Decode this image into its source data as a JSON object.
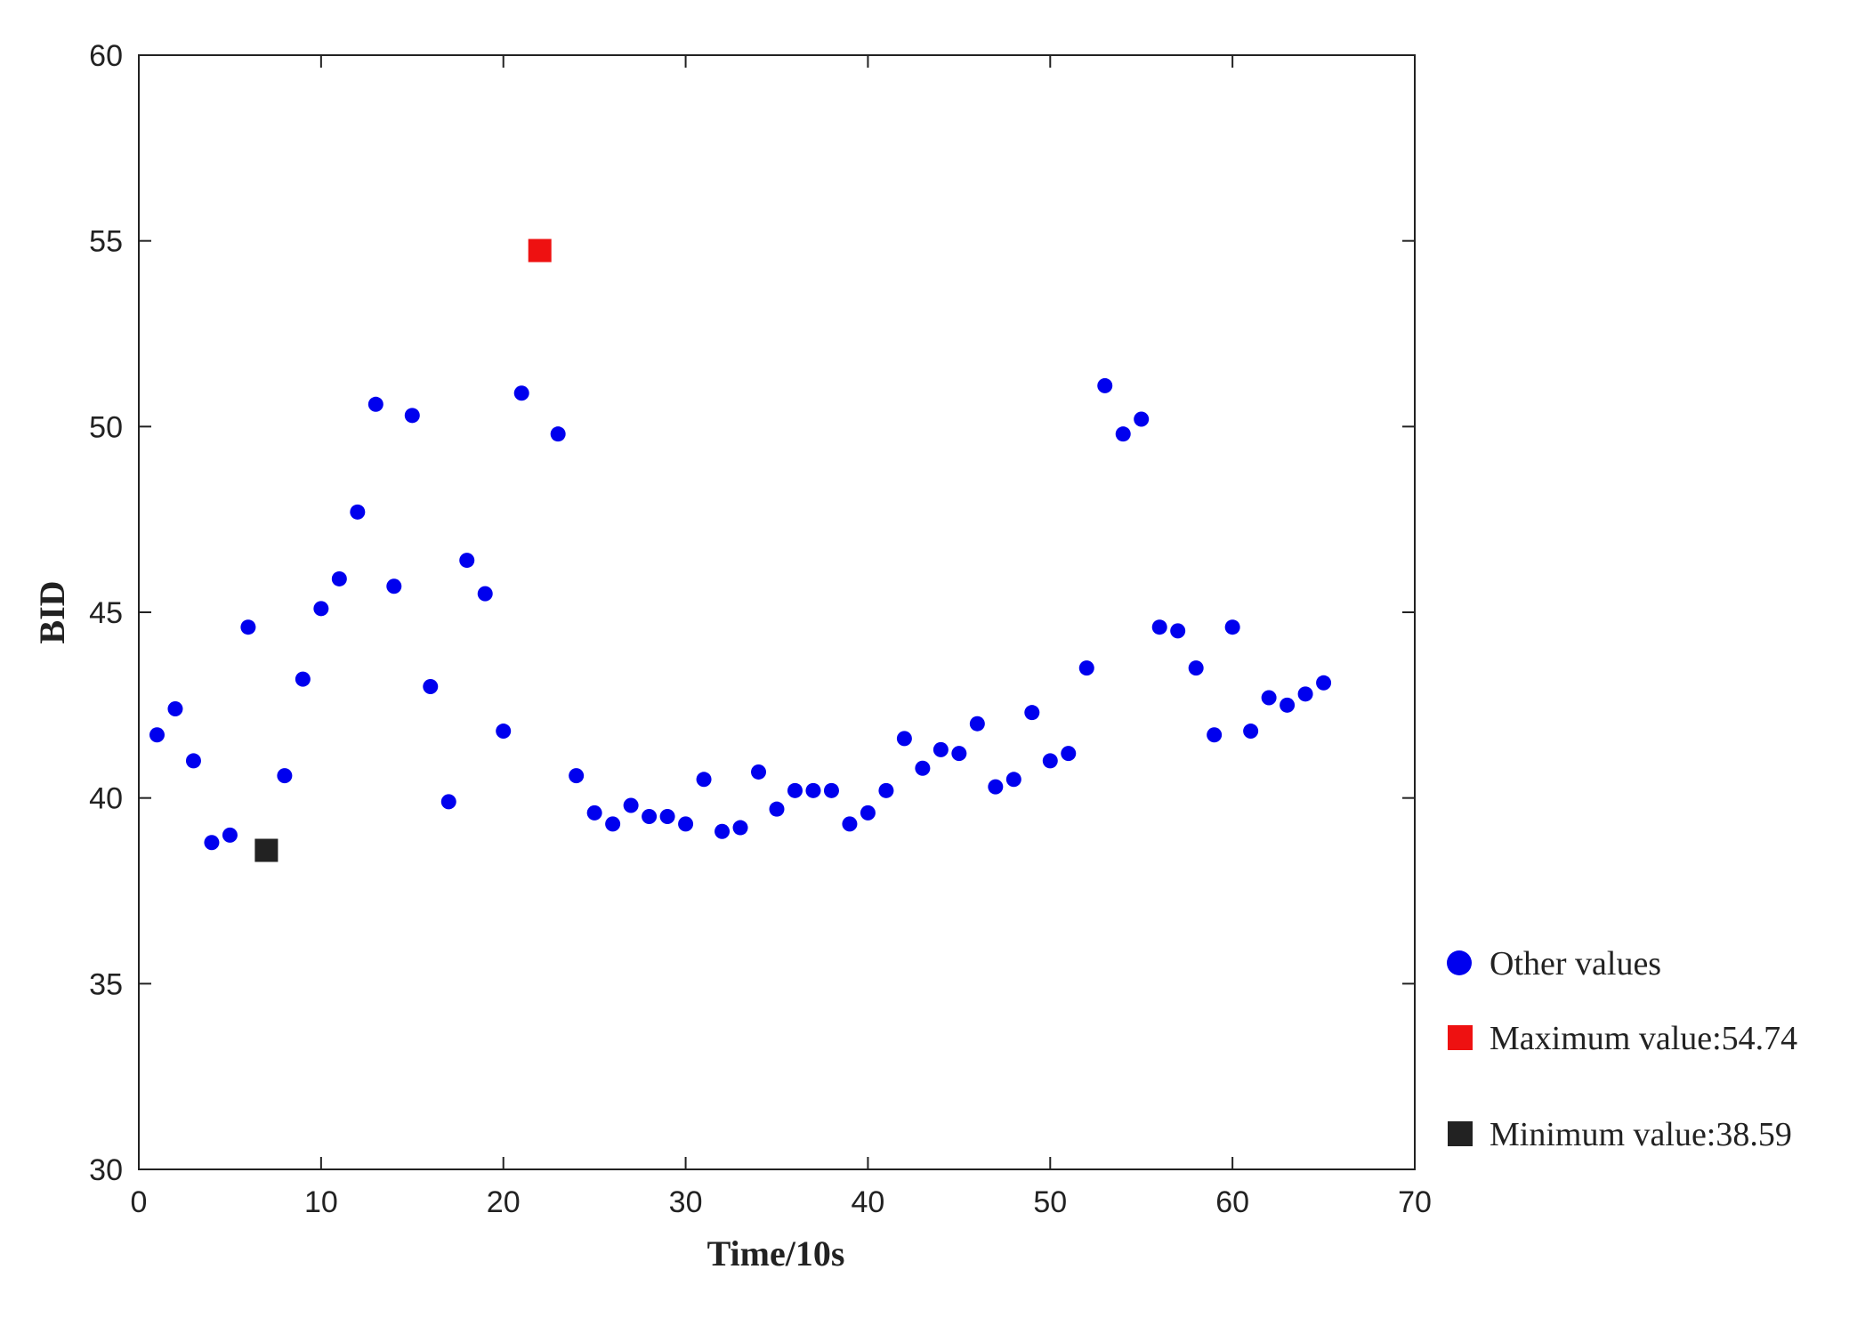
{
  "chart_data": {
    "type": "scatter",
    "title": "",
    "xlabel": "Time/10s",
    "ylabel": "BID",
    "xlim": [
      0,
      70
    ],
    "ylim": [
      30,
      60
    ],
    "xticks": [
      0,
      10,
      20,
      30,
      40,
      50,
      60,
      70
    ],
    "yticks": [
      30,
      35,
      40,
      45,
      50,
      55,
      60
    ],
    "grid": false,
    "legend_position": "right",
    "series": [
      {
        "name": "Other values",
        "marker": "circle",
        "color": "#0000ee",
        "x": [
          1,
          2,
          3,
          4,
          5,
          6,
          8,
          9,
          10,
          11,
          12,
          13,
          14,
          15,
          16,
          17,
          18,
          19,
          20,
          21,
          23,
          24,
          25,
          26,
          27,
          28,
          29,
          30,
          31,
          32,
          33,
          34,
          35,
          36,
          37,
          38,
          39,
          40,
          41,
          42,
          43,
          44,
          45,
          46,
          47,
          48,
          49,
          50,
          51,
          52,
          53,
          54,
          55,
          56,
          57,
          58,
          59,
          60,
          61,
          62,
          63,
          64,
          65
        ],
        "y": [
          41.7,
          42.4,
          41.0,
          38.8,
          39.0,
          44.6,
          40.6,
          43.2,
          45.1,
          45.9,
          47.7,
          50.6,
          45.7,
          50.3,
          43.0,
          39.9,
          46.4,
          45.5,
          41.8,
          50.9,
          49.8,
          40.6,
          39.6,
          39.3,
          39.8,
          39.5,
          39.5,
          39.3,
          40.5,
          39.1,
          39.2,
          40.7,
          39.7,
          40.2,
          40.2,
          40.2,
          39.3,
          39.6,
          40.2,
          41.6,
          40.8,
          41.3,
          41.2,
          42.0,
          40.3,
          40.5,
          42.3,
          41.0,
          41.2,
          43.5,
          51.1,
          49.8,
          50.2,
          44.6,
          44.5,
          43.5,
          41.7,
          44.6,
          41.8,
          42.7,
          42.5,
          42.8,
          43.1
        ]
      },
      {
        "name": "Maximum value:54.74",
        "marker": "square",
        "color": "#ee1111",
        "x": [
          22
        ],
        "y": [
          54.74
        ]
      },
      {
        "name": "Minimum value:38.59",
        "marker": "square",
        "color": "#222222",
        "x": [
          7
        ],
        "y": [
          38.59
        ]
      }
    ]
  }
}
